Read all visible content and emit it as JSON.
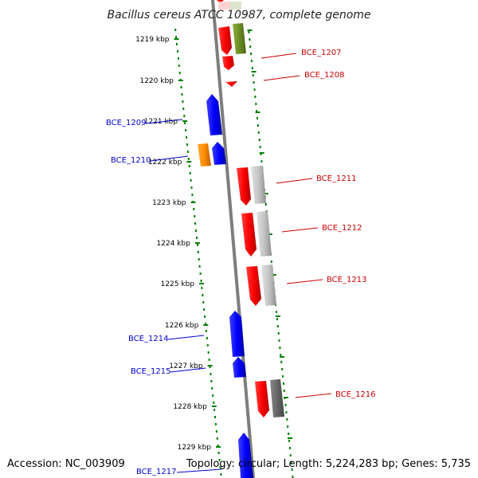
{
  "title": "Bacillus cereus ATCC 10987, complete genome",
  "accession": "Accession: NC_003909",
  "summary": "Topology: circular; Length: 5,224,283 bp; Genes: 5,735",
  "ticks": [
    "1219 kbp",
    "1220 kbp",
    "1221 kbp",
    "1222 kbp",
    "1223 kbp",
    "1224 kbp",
    "1225 kbp",
    "1226 kbp",
    "1227 kbp",
    "1228 kbp",
    "1229 kbp"
  ],
  "genes_forward": [
    {
      "label": "BCE_1207",
      "color": "#ff0000"
    },
    {
      "label": "BCE_1208",
      "color": "#ff0000"
    },
    {
      "label": "BCE_1211",
      "color": "#ff0000"
    },
    {
      "label": "BCE_1212",
      "color": "#ff0000"
    },
    {
      "label": "BCE_1213",
      "color": "#ff0000"
    },
    {
      "label": "BCE_1216",
      "color": "#ff0000"
    }
  ],
  "genes_reverse": [
    {
      "label": "BCE_1209",
      "color": "#0000ff"
    },
    {
      "label": "BCE_1210",
      "color": "#0000ff"
    },
    {
      "label": "BCE_1214",
      "color": "#0000ff"
    },
    {
      "label": "BCE_1215",
      "color": "#0000ff"
    },
    {
      "label": "BCE_1217",
      "color": "#0000ff"
    }
  ],
  "colors": {
    "forward_label": "#cc0000",
    "reverse_label": "#0000cc",
    "tick_green": "#008000",
    "backbone": "#888888",
    "cog_green": "#6b8e23",
    "cog_gray": "#c0c0c0",
    "cog_dark": "#666666",
    "cog_orange": "#ff8c00"
  }
}
